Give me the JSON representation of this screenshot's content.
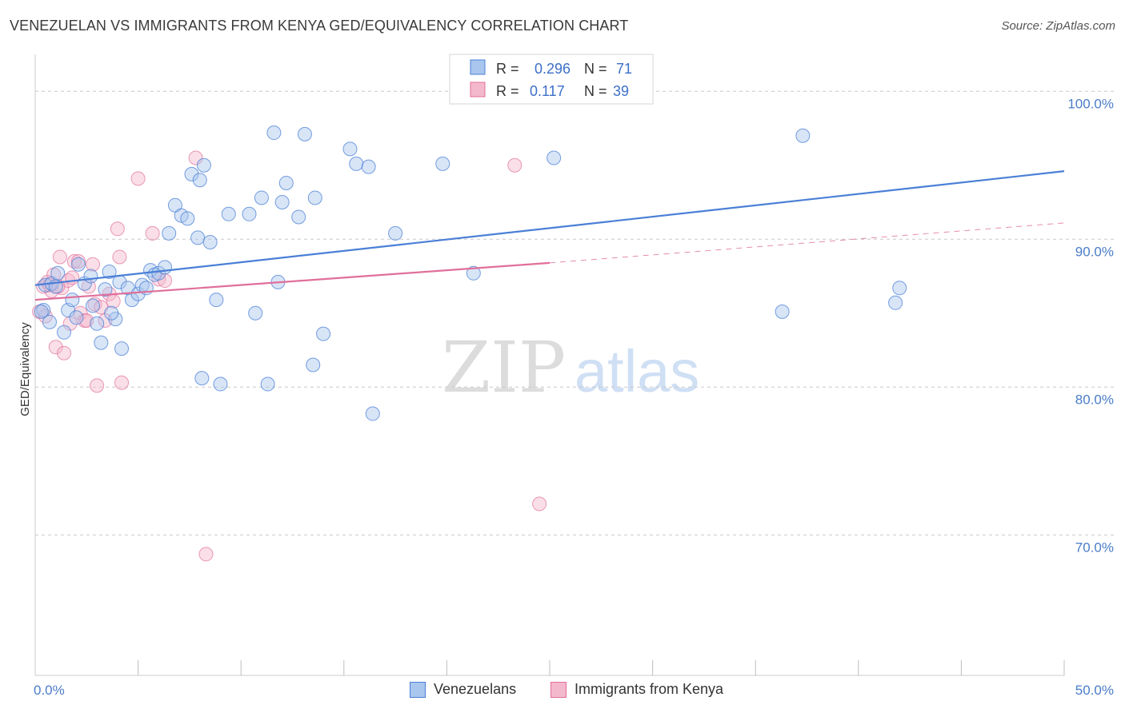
{
  "header": {
    "title": "VENEZUELAN VS IMMIGRANTS FROM KENYA GED/EQUIVALENCY CORRELATION CHART",
    "source": "Source: ZipAtlas.com"
  },
  "watermark": {
    "zip": "ZIP",
    "atlas": "atlas"
  },
  "colors": {
    "blue": "#4a7fd6",
    "blue_fill": "#a9c6ee",
    "pink": "#e06f9a",
    "pink_fill": "#f4b8cc",
    "grid": "#c8c8c8",
    "tick_label": "#4a7cc9"
  },
  "legend_box": {
    "rows": [
      {
        "r_label": "R = ",
        "r_value": "0.296",
        "n_label": "N = ",
        "n_value": "71"
      },
      {
        "r_label": "R = ",
        "r_value": "0.117",
        "n_label": "N = ",
        "n_value": "39"
      }
    ]
  },
  "bottom_legend": [
    "Venezuelans",
    "Immigrants from Kenya"
  ],
  "chart_data": {
    "type": "scatter",
    "ylabel": "GED/Equivalency",
    "xlim": [
      0,
      50
    ],
    "ylim": [
      60.5,
      102.5
    ],
    "y_ticks": [
      {
        "value": 100,
        "label": "100.0%"
      },
      {
        "value": 90,
        "label": "90.0%"
      },
      {
        "value": 80,
        "label": "80.0%"
      },
      {
        "value": 70,
        "label": "70.0%"
      }
    ],
    "x_tick_labels": [
      {
        "value": 0,
        "label": "0.0%"
      },
      {
        "value": 50,
        "label": "50.0%"
      }
    ],
    "x_minor_ticks": [
      5,
      10,
      15,
      20,
      25,
      30,
      35,
      40,
      45,
      50
    ],
    "series": [
      {
        "name": "Venezuelans",
        "color": "#4a7fd6",
        "points": [
          [
            0.4,
            85.2
          ],
          [
            0.5,
            86.9
          ],
          [
            0.7,
            84.4
          ],
          [
            0.8,
            87.0
          ],
          [
            1.0,
            86.8
          ],
          [
            1.1,
            87.7
          ],
          [
            1.4,
            83.7
          ],
          [
            1.6,
            85.2
          ],
          [
            1.8,
            85.9
          ],
          [
            2.0,
            84.7
          ],
          [
            2.1,
            88.3
          ],
          [
            2.4,
            87.0
          ],
          [
            2.7,
            87.5
          ],
          [
            2.8,
            85.5
          ],
          [
            3.0,
            84.3
          ],
          [
            3.2,
            83.0
          ],
          [
            3.4,
            86.6
          ],
          [
            3.6,
            87.8
          ],
          [
            3.9,
            84.6
          ],
          [
            4.1,
            87.1
          ],
          [
            4.2,
            82.6
          ],
          [
            4.5,
            86.7
          ],
          [
            4.7,
            85.9
          ],
          [
            5.0,
            86.3
          ],
          [
            5.2,
            86.9
          ],
          [
            5.4,
            86.7
          ],
          [
            5.6,
            87.9
          ],
          [
            5.8,
            87.6
          ],
          [
            6.0,
            87.7
          ],
          [
            6.3,
            88.1
          ],
          [
            6.5,
            90.4
          ],
          [
            6.8,
            92.3
          ],
          [
            7.1,
            91.6
          ],
          [
            7.4,
            91.4
          ],
          [
            7.6,
            94.4
          ],
          [
            7.9,
            90.1
          ],
          [
            8.2,
            95.0
          ],
          [
            8.5,
            89.8
          ],
          [
            8.8,
            85.9
          ],
          [
            9.4,
            91.7
          ],
          [
            10.4,
            91.7
          ],
          [
            10.7,
            85.0
          ],
          [
            11.0,
            92.8
          ],
          [
            11.6,
            97.2
          ],
          [
            11.8,
            87.1
          ],
          [
            12.0,
            92.5
          ],
          [
            12.2,
            93.8
          ],
          [
            12.8,
            91.5
          ],
          [
            13.1,
            97.1
          ],
          [
            13.6,
            92.8
          ],
          [
            14.0,
            83.6
          ],
          [
            15.3,
            96.1
          ],
          [
            15.6,
            95.1
          ],
          [
            16.2,
            94.9
          ],
          [
            17.5,
            90.4
          ],
          [
            19.8,
            95.1
          ],
          [
            21.3,
            87.7
          ],
          [
            21.9,
            100.1
          ],
          [
            25.2,
            95.5
          ],
          [
            37.3,
            97.0
          ],
          [
            36.3,
            85.1
          ],
          [
            41.8,
            85.7
          ],
          [
            42.0,
            86.7
          ],
          [
            8.0,
            94.0
          ],
          [
            3.7,
            85.0
          ],
          [
            9.0,
            80.2
          ],
          [
            11.3,
            80.2
          ],
          [
            16.4,
            78.2
          ],
          [
            13.5,
            81.5
          ],
          [
            8.1,
            80.6
          ],
          [
            0.3,
            85.1
          ]
        ],
        "trend": {
          "x": [
            0,
            50
          ],
          "y": [
            86.9,
            94.6
          ]
        }
      },
      {
        "name": "Immigrants from Kenya",
        "color": "#e06f9a",
        "points": [
          [
            0.2,
            85.1
          ],
          [
            0.4,
            86.8
          ],
          [
            0.5,
            84.8
          ],
          [
            0.6,
            87.1
          ],
          [
            0.8,
            86.5
          ],
          [
            0.9,
            87.6
          ],
          [
            1.0,
            82.7
          ],
          [
            1.2,
            88.8
          ],
          [
            1.3,
            86.7
          ],
          [
            1.4,
            82.3
          ],
          [
            1.6,
            87.2
          ],
          [
            1.7,
            84.3
          ],
          [
            1.8,
            87.4
          ],
          [
            1.9,
            88.5
          ],
          [
            2.1,
            88.5
          ],
          [
            2.2,
            85.0
          ],
          [
            2.4,
            84.5
          ],
          [
            2.5,
            84.5
          ],
          [
            2.6,
            86.8
          ],
          [
            2.8,
            88.3
          ],
          [
            2.9,
            85.6
          ],
          [
            3.0,
            80.1
          ],
          [
            3.2,
            85.4
          ],
          [
            3.4,
            84.5
          ],
          [
            3.6,
            86.3
          ],
          [
            3.8,
            85.8
          ],
          [
            4.0,
            90.7
          ],
          [
            4.1,
            88.8
          ],
          [
            4.2,
            80.3
          ],
          [
            5.0,
            94.1
          ],
          [
            5.7,
            90.4
          ],
          [
            6.0,
            87.3
          ],
          [
            6.3,
            87.2
          ],
          [
            7.8,
            95.5
          ],
          [
            8.3,
            68.7
          ],
          [
            23.3,
            95.0
          ],
          [
            24.5,
            72.1
          ],
          [
            0.7,
            86.9
          ],
          [
            1.1,
            86.8
          ]
        ],
        "trend_solid": {
          "x": [
            0,
            25
          ],
          "y": [
            85.9,
            88.4
          ]
        },
        "trend_dashed": {
          "x": [
            25,
            50
          ],
          "y": [
            88.4,
            91.1
          ]
        }
      }
    ]
  }
}
